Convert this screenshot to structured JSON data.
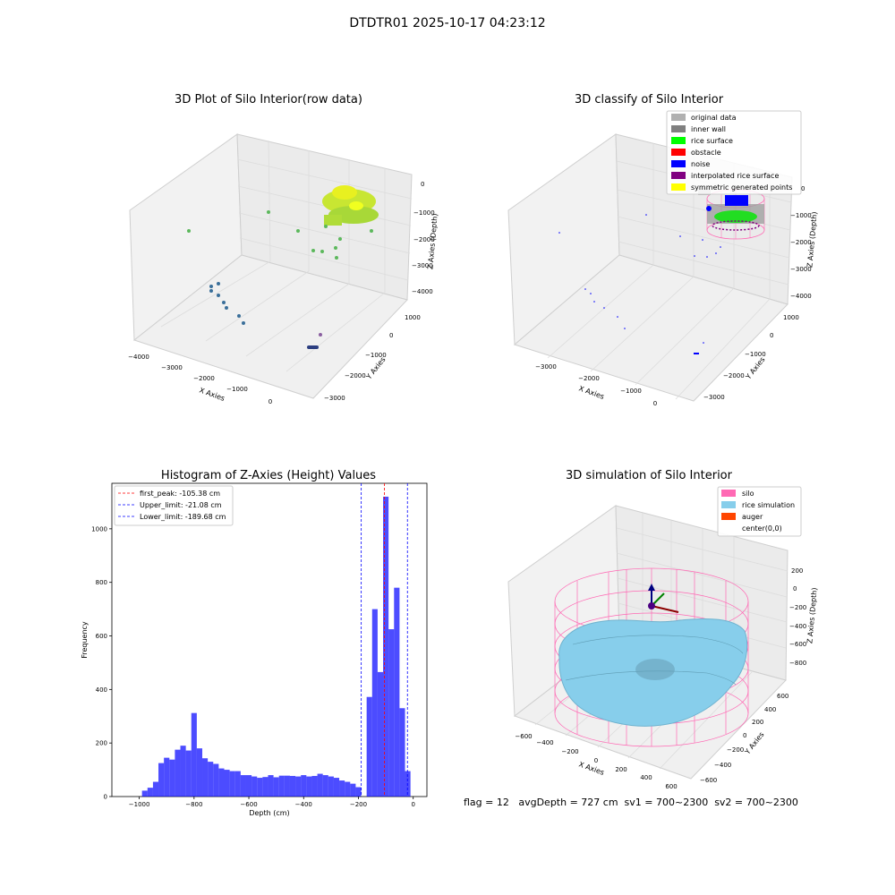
{
  "figure": {
    "title": "DTDTR01 2025-10-17 04:23:12",
    "status_text": "flag = 12   avgDepth = 727 cm  sv1 = 700~2300  sv2 = 700~2300"
  },
  "panel1": {
    "title": "3D Plot of Silo Interior(row data)",
    "xlabel": "X Axies",
    "ylabel": "Y Axies",
    "zlabel": "Z Axies (Depth)",
    "xticks": [
      "−4000",
      "−3000",
      "−2000",
      "−1000",
      "0"
    ],
    "yticks": [
      "−3000",
      "−2000",
      "−1000",
      "0",
      "1000"
    ],
    "zticks": [
      "0",
      "−1000",
      "−2000",
      "−3000",
      "−4000"
    ]
  },
  "panel2": {
    "title": "3D classify of Silo Interior",
    "xlabel": "X Axies",
    "ylabel": "Y Axies",
    "zlabel": "Z Axies (Depth)",
    "xticks": [
      "−3000",
      "−2000",
      "−1000",
      "0"
    ],
    "yticks": [
      "−3000",
      "−2000",
      "−1000",
      "0",
      "1000"
    ],
    "zticks": [
      "0",
      "−1000",
      "−2000",
      "−3000",
      "−4000"
    ],
    "legend": [
      {
        "label": "original data",
        "color": "#b0b0b0"
      },
      {
        "label": "inner wall",
        "color": "#808080"
      },
      {
        "label": "rice surface",
        "color": "#00ff00"
      },
      {
        "label": "obstacle",
        "color": "#ff0000"
      },
      {
        "label": "noise",
        "color": "#0000ff"
      },
      {
        "label": "interpolated rice surface",
        "color": "#800080"
      },
      {
        "label": "symmetric generated points",
        "color": "#ffff00"
      }
    ]
  },
  "panel4": {
    "title": "3D simulation of Silo Interior",
    "xlabel": "X Axies",
    "ylabel": "Y Axies",
    "zlabel": "Z Axies (Depth)",
    "xticks": [
      "−600",
      "−400",
      "−200",
      "0",
      "200",
      "400",
      "600"
    ],
    "yticks": [
      "−600",
      "−400",
      "−200",
      "0",
      "200",
      "400",
      "600"
    ],
    "zticks": [
      "200",
      "0",
      "−200",
      "−400",
      "−600",
      "−800"
    ],
    "legend": [
      {
        "label": "silo",
        "color": "#ff69b4"
      },
      {
        "label": "rice simulation",
        "color": "#87ceeb"
      },
      {
        "label": "auger",
        "color": "#ff4500"
      },
      {
        "label": "center(0,0)",
        "color": ""
      }
    ]
  },
  "chart_data": [
    {
      "type": "histogram",
      "title": "Histogram of Z-Axies (Height) Values",
      "xlabel": "Depth (cm)",
      "ylabel": "Frequency",
      "xlim": [
        -1100,
        50
      ],
      "ylim": [
        0,
        1170
      ],
      "xticks": [
        -1000,
        -800,
        -600,
        -400,
        -200,
        0
      ],
      "yticks": [
        0,
        200,
        400,
        600,
        800,
        1000
      ],
      "bar_color": "#0000ff",
      "bin_width": 20,
      "bins_start": [
        -990,
        -970,
        -950,
        -930,
        -910,
        -890,
        -870,
        -850,
        -830,
        -810,
        -790,
        -770,
        -750,
        -730,
        -710,
        -690,
        -670,
        -650,
        -630,
        -610,
        -590,
        -570,
        -550,
        -530,
        -510,
        -490,
        -470,
        -450,
        -430,
        -410,
        -390,
        -370,
        -350,
        -330,
        -310,
        -290,
        -270,
        -250,
        -230,
        -210,
        -190,
        -170,
        -150,
        -130,
        -110,
        -90,
        -70,
        -50,
        -30,
        -10
      ],
      "values": [
        22,
        33,
        55,
        125,
        145,
        138,
        175,
        190,
        172,
        312,
        180,
        143,
        130,
        122,
        105,
        100,
        95,
        95,
        80,
        80,
        75,
        70,
        73,
        80,
        72,
        78,
        78,
        77,
        75,
        80,
        75,
        77,
        85,
        80,
        75,
        70,
        60,
        55,
        48,
        35,
        0,
        372,
        700,
        465,
        1120,
        625,
        780,
        330,
        95,
        0
      ],
      "lines": [
        {
          "label": "first_peak: -105.38 cm",
          "x": -105.38,
          "color": "#ff0000"
        },
        {
          "label": "Upper_limit: -21.08 cm",
          "x": -21.08,
          "color": "#0000ff"
        },
        {
          "label": "Lower_limit: -189.68 cm",
          "x": -189.68,
          "color": "#0000ff"
        }
      ],
      "legend_position": "upper left"
    }
  ]
}
